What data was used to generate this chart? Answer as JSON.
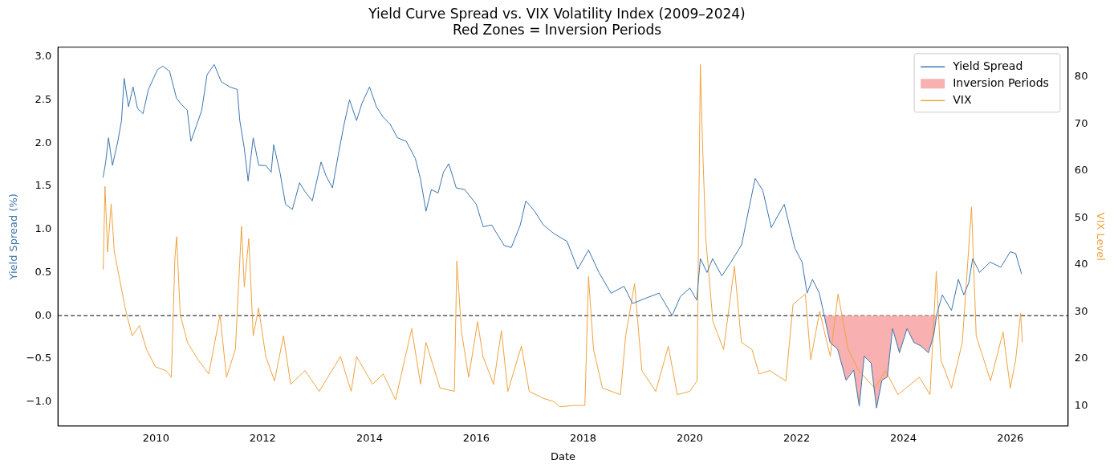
{
  "chart_data": {
    "type": "line",
    "title": "Yield Curve Spread vs. VIX Volatility Index (2009–2024)",
    "subtitle": "Red Zones = Inversion Periods",
    "xlabel": "Date",
    "ylabel": "Yield Spread (%)",
    "y2label": "VIX Level",
    "xlim": [
      "2008-03-01",
      "2027-02-01"
    ],
    "xticks": [
      {
        "value": "2010-01-01",
        "label": "2010"
      },
      {
        "value": "2012-01-01",
        "label": "2012"
      },
      {
        "value": "2014-01-01",
        "label": "2014"
      },
      {
        "value": "2016-01-01",
        "label": "2016"
      },
      {
        "value": "2018-01-01",
        "label": "2018"
      },
      {
        "value": "2020-01-01",
        "label": "2020"
      },
      {
        "value": "2022-01-01",
        "label": "2022"
      },
      {
        "value": "2024-01-01",
        "label": "2024"
      },
      {
        "value": "2026-01-01",
        "label": "2026"
      }
    ],
    "ylim": [
      -1.28,
      3.11
    ],
    "yticks": [
      {
        "value": -1,
        "label": "−1.0"
      },
      {
        "value": -0.5,
        "label": "−0.5"
      },
      {
        "value": 0,
        "label": "0.0"
      },
      {
        "value": 0.5,
        "label": "0.5"
      },
      {
        "value": 1,
        "label": "1.0"
      },
      {
        "value": 1.5,
        "label": "1.5"
      },
      {
        "value": 2,
        "label": "2.0"
      },
      {
        "value": 2.5,
        "label": "2.5"
      },
      {
        "value": 3,
        "label": "3.0"
      }
    ],
    "y2lim": [
      5.7,
      86.3
    ],
    "y2ticks": [
      10,
      20,
      30,
      40,
      50,
      60,
      70,
      80
    ],
    "legend": "top right",
    "grid": false,
    "ref_lines": [
      {
        "axis": "y",
        "value": 0,
        "color": "#000000",
        "line_style": "dashed"
      }
    ],
    "series": [
      {
        "name": "Yield Spread",
        "type": "line",
        "color": "#3b75af",
        "x": [
          "2009-01-04",
          "2009-01-22",
          "2009-02-10",
          "2009-03-09",
          "2009-04-15",
          "2009-05-10",
          "2009-05-28",
          "2009-06-27",
          "2009-07-28",
          "2009-08-28",
          "2009-10-04",
          "2009-11-10",
          "2010-01-11",
          "2010-02-17",
          "2010-04-04",
          "2010-05-21",
          "2010-06-27",
          "2010-08-03",
          "2010-08-28",
          "2010-10-04",
          "2010-11-10",
          "2010-12-16",
          "2011-02-03",
          "2011-03-23",
          "2011-05-21",
          "2011-07-11",
          "2011-07-28",
          "2011-08-28",
          "2011-09-23",
          "2011-10-28",
          "2011-12-05",
          "2012-01-22",
          "2012-02-28",
          "2012-03-16",
          "2012-04-28",
          "2012-06-05",
          "2012-07-22",
          "2012-09-09",
          "2012-10-15",
          "2012-12-05",
          "2013-02-03",
          "2013-03-09",
          "2013-04-22",
          "2013-06-05",
          "2013-07-11",
          "2013-08-17",
          "2013-10-04",
          "2013-11-10",
          "2014-01-01",
          "2014-02-17",
          "2014-04-04",
          "2014-05-21",
          "2014-07-11",
          "2014-09-09",
          "2014-11-10",
          "2014-12-16",
          "2015-01-22",
          "2015-02-28",
          "2015-04-15",
          "2015-05-21",
          "2015-06-27",
          "2015-08-17",
          "2015-10-15",
          "2016-01-01",
          "2016-02-17",
          "2016-04-15",
          "2016-07-11",
          "2016-08-28",
          "2016-10-28",
          "2016-12-05",
          "2017-02-03",
          "2017-04-04",
          "2017-06-16",
          "2017-09-13",
          "2017-11-25",
          "2018-02-07",
          "2018-04-19",
          "2018-07-11",
          "2018-10-08",
          "2018-12-05",
          "2019-03-02",
          "2019-06-05",
          "2019-09-02",
          "2019-10-28",
          "2020-01-01",
          "2020-02-17",
          "2020-03-13",
          "2020-04-28",
          "2020-06-05",
          "2020-08-07",
          "2020-10-08",
          "2020-12-20",
          "2021-02-07",
          "2021-03-23",
          "2021-05-14",
          "2021-07-11",
          "2021-10-08",
          "2021-12-20",
          "2022-02-07",
          "2022-03-13",
          "2022-04-19",
          "2022-06-05",
          "2022-07-11",
          "2022-08-17",
          "2022-10-08",
          "2022-12-05",
          "2023-01-26",
          "2023-03-05",
          "2023-04-08",
          "2023-05-25",
          "2023-07-01",
          "2023-08-07",
          "2023-09-13",
          "2023-10-19",
          "2023-12-05",
          "2024-01-26",
          "2024-03-13",
          "2024-04-28",
          "2024-06-20",
          "2024-07-26",
          "2024-08-17",
          "2024-09-23",
          "2024-11-25",
          "2025-01-11",
          "2025-02-17",
          "2025-03-23",
          "2025-04-19",
          "2025-06-05",
          "2025-08-17",
          "2025-10-28",
          "2026-01-01",
          "2026-02-07",
          "2026-03-20"
        ],
        "values": [
          1.6,
          1.78,
          2.06,
          1.74,
          2.02,
          2.26,
          2.75,
          2.42,
          2.65,
          2.4,
          2.34,
          2.62,
          2.85,
          2.89,
          2.83,
          2.52,
          2.44,
          2.38,
          2.02,
          2.2,
          2.38,
          2.79,
          2.91,
          2.71,
          2.65,
          2.62,
          2.26,
          1.94,
          1.56,
          2.06,
          1.74,
          1.74,
          1.66,
          1.98,
          1.66,
          1.29,
          1.23,
          1.54,
          1.44,
          1.33,
          1.78,
          1.62,
          1.48,
          1.9,
          2.22,
          2.5,
          2.26,
          2.46,
          2.65,
          2.42,
          2.3,
          2.22,
          2.06,
          2.02,
          1.82,
          1.58,
          1.21,
          1.46,
          1.42,
          1.66,
          1.76,
          1.48,
          1.46,
          1.29,
          1.03,
          1.05,
          0.81,
          0.79,
          1.05,
          1.33,
          1.21,
          1.05,
          0.95,
          0.86,
          0.54,
          0.76,
          0.5,
          0.26,
          0.34,
          0.14,
          0.2,
          0.26,
          0.0,
          0.22,
          0.32,
          0.18,
          0.66,
          0.5,
          0.66,
          0.46,
          0.62,
          0.82,
          1.23,
          1.59,
          1.45,
          1.02,
          1.29,
          0.78,
          0.62,
          0.26,
          0.42,
          0.26,
          -0.02,
          -0.31,
          -0.39,
          -0.75,
          -0.63,
          -1.05,
          -0.47,
          -0.55,
          -1.07,
          -0.75,
          -0.71,
          -0.15,
          -0.43,
          -0.15,
          -0.31,
          -0.35,
          -0.43,
          -0.23,
          0.02,
          0.24,
          0.06,
          0.42,
          0.24,
          0.38,
          0.66,
          0.5,
          0.62,
          0.56,
          0.74,
          0.72,
          0.48
        ]
      },
      {
        "name": "Inversion Periods",
        "type": "area",
        "color": "#f8b0b0",
        "x": [
          "2022-07-08",
          "2022-07-11",
          "2022-08-17",
          "2022-10-08",
          "2022-12-05",
          "2023-01-26",
          "2023-03-05",
          "2023-04-08",
          "2023-05-25",
          "2023-07-01",
          "2023-08-07",
          "2023-09-13",
          "2023-10-19",
          "2023-12-05",
          "2024-01-26",
          "2024-03-13",
          "2024-04-28",
          "2024-06-20",
          "2024-07-26",
          "2024-08-14"
        ],
        "values": [
          0,
          -0.02,
          -0.31,
          -0.39,
          -0.75,
          -0.63,
          -1.05,
          -0.47,
          -0.55,
          -1.07,
          -0.75,
          -0.71,
          -0.15,
          -0.43,
          -0.15,
          -0.31,
          -0.35,
          -0.43,
          -0.23,
          0
        ]
      },
      {
        "name": "VIX",
        "type": "line",
        "axis": "y2",
        "color": "#f0a340",
        "x": [
          "2009-01-05",
          "2009-01-17",
          "2009-02-04",
          "2009-02-28",
          "2009-03-22",
          "2009-04-28",
          "2009-06-04",
          "2009-07-22",
          "2009-09-10",
          "2009-10-28",
          "2009-12-28",
          "2010-03-10",
          "2010-04-16",
          "2010-05-10",
          "2010-05-22",
          "2010-06-16",
          "2010-08-04",
          "2010-10-16",
          "2010-12-28",
          "2011-03-15",
          "2011-04-28",
          "2011-06-28",
          "2011-08-09",
          "2011-08-28",
          "2011-09-28",
          "2011-10-28",
          "2011-12-04",
          "2012-01-22",
          "2012-03-22",
          "2012-05-22",
          "2012-07-10",
          "2012-10-16",
          "2013-01-22",
          "2013-06-16",
          "2013-08-28",
          "2013-10-04",
          "2014-01-22",
          "2014-04-04",
          "2014-06-28",
          "2014-10-16",
          "2014-12-16",
          "2015-01-22",
          "2015-04-28",
          "2015-08-04",
          "2015-08-21",
          "2015-09-22",
          "2015-11-10",
          "2016-01-10",
          "2016-02-16",
          "2016-04-28",
          "2016-06-21",
          "2016-08-04",
          "2016-11-05",
          "2016-12-28",
          "2017-04-04",
          "2017-06-16",
          "2017-07-25",
          "2017-11-01",
          "2018-01-13",
          "2018-02-07",
          "2018-03-13",
          "2018-05-13",
          "2018-09-13",
          "2018-10-19",
          "2018-12-19",
          "2019-02-07",
          "2019-05-13",
          "2019-08-07",
          "2019-10-07",
          "2020-01-01",
          "2020-02-19",
          "2020-03-13",
          "2020-03-28",
          "2020-04-19",
          "2020-06-07",
          "2020-08-19",
          "2020-11-01",
          "2020-12-19",
          "2021-03-01",
          "2021-04-19",
          "2021-07-01",
          "2021-10-19",
          "2021-12-07",
          "2022-03-01",
          "2022-04-07",
          "2022-06-07",
          "2022-08-19",
          "2022-10-11",
          "2022-12-19",
          "2023-03-01",
          "2023-06-19",
          "2023-09-01",
          "2023-11-25",
          "2024-04-19",
          "2024-07-01",
          "2024-08-13",
          "2024-09-13",
          "2024-11-25",
          "2025-02-07",
          "2025-04-11",
          "2025-05-13",
          "2025-08-19",
          "2025-11-13",
          "2026-01-01",
          "2026-02-07",
          "2026-03-13",
          "2026-03-25"
        ],
        "values": [
          39,
          56.7,
          42.7,
          53,
          42.7,
          36.8,
          30.8,
          24.9,
          27.1,
          22,
          18.3,
          17.5,
          16.1,
          41.2,
          46,
          29.4,
          23.5,
          19.8,
          16.8,
          29.4,
          16.1,
          22,
          48.2,
          35.3,
          45.6,
          24.9,
          30.8,
          20.5,
          15.3,
          24.9,
          14.6,
          17.5,
          13.1,
          20.5,
          13.1,
          20.5,
          14.6,
          16.8,
          11.3,
          26.4,
          14.6,
          23.5,
          13.8,
          13.1,
          40.8,
          25.7,
          16.1,
          27.9,
          20.5,
          14.6,
          26,
          13.1,
          22.7,
          13.1,
          11.6,
          10.9,
          9.8,
          10.1,
          10.1,
          37.5,
          22,
          13.8,
          12.4,
          24.9,
          36,
          17.5,
          13.1,
          22.7,
          12.4,
          13.1,
          15.3,
          82.6,
          65.6,
          45.6,
          27.9,
          22,
          39.7,
          23.5,
          22,
          16.8,
          17.5,
          15.3,
          31.6,
          33.8,
          19.8,
          30.1,
          20.5,
          33.8,
          22,
          17.5,
          13.8,
          17.5,
          12.4,
          16.1,
          12.4,
          38.6,
          19.8,
          13.8,
          23.5,
          52.3,
          24.9,
          15.3,
          25.7,
          13.8,
          19.8,
          29.7,
          23.5
        ]
      }
    ]
  }
}
